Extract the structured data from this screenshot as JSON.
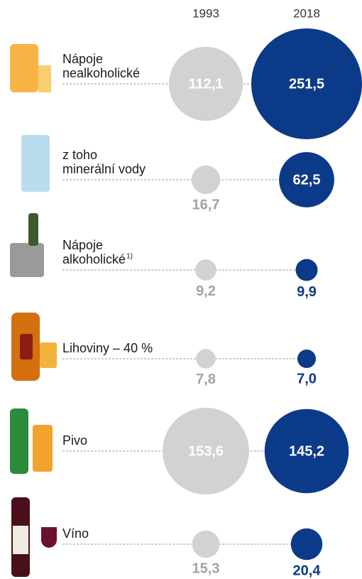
{
  "chart_data": {
    "type": "bubble",
    "categories": [
      "Nápoje\nnealkoholické",
      "z toho\nminerální vody",
      "Nápoje\nalkoholické",
      "Lihoviny – 40 %",
      "Pivo",
      "Víno"
    ],
    "category_notes": [
      null,
      null,
      "1)",
      null,
      null,
      null
    ],
    "series": [
      {
        "name": "1993",
        "color": "#d2d2d2",
        "label_color": "#a3a3a3",
        "values": [
          112.1,
          16.7,
          9.2,
          7.8,
          153.6,
          15.3
        ],
        "value_labels": [
          "112,1",
          "16,7",
          "9,2",
          "7,8",
          "153,6",
          "15,3"
        ]
      },
      {
        "name": "2018",
        "color": "#0b3a88",
        "label_color": "#0b3a88",
        "values": [
          251.5,
          62.5,
          9.9,
          7.0,
          145.2,
          20.4
        ],
        "value_labels": [
          "251,5",
          "62,5",
          "9,9",
          "7,0",
          "145,2",
          "20,4"
        ]
      }
    ]
  }
}
